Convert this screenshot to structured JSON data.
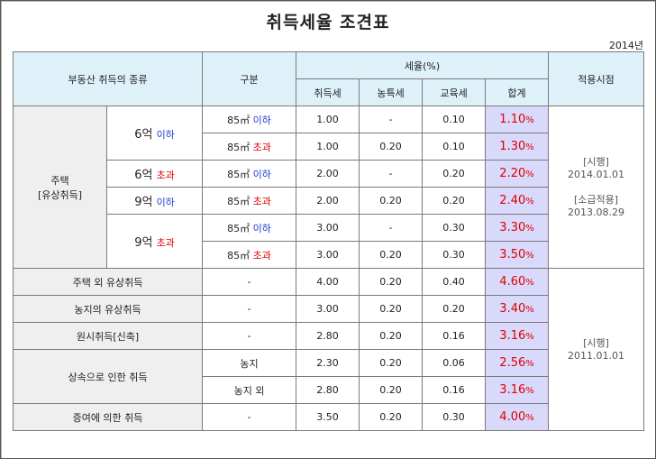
{
  "title": "취득세율 조견표",
  "year": "2014년",
  "header": {
    "category": "부동산 취득의 종류",
    "division": "구분",
    "rate": "세율(%)",
    "acq": "취득세",
    "agri": "농특세",
    "edu": "교육세",
    "total": "합계",
    "effective": "적용시점"
  },
  "labels": {
    "housing": "주택",
    "housing_sub": "[유상취득]",
    "eok6": "6억",
    "eok9": "9억",
    "below": "이하",
    "above": "초과",
    "m85": "85㎡",
    "dash": "-",
    "pct": "%",
    "farmland": "농지",
    "non_farmland": "농지 외"
  },
  "rows": [
    {
      "acq": "1.00",
      "agri": "-",
      "edu": "0.10",
      "total": "1.10"
    },
    {
      "acq": "1.00",
      "agri": "0.20",
      "edu": "0.10",
      "total": "1.30"
    },
    {
      "acq": "2.00",
      "agri": "-",
      "edu": "0.20",
      "total": "2.20"
    },
    {
      "acq": "2.00",
      "agri": "0.20",
      "edu": "0.20",
      "total": "2.40"
    },
    {
      "acq": "3.00",
      "agri": "-",
      "edu": "0.30",
      "total": "3.30"
    },
    {
      "acq": "3.00",
      "agri": "0.20",
      "edu": "0.30",
      "total": "3.50"
    },
    {
      "label": "주택 외 유상취득",
      "acq": "4.00",
      "agri": "0.20",
      "edu": "0.40",
      "total": "4.60"
    },
    {
      "label": "농지의 유상취득",
      "acq": "3.00",
      "agri": "0.20",
      "edu": "0.20",
      "total": "3.40"
    },
    {
      "label": "원시취득[신축]",
      "acq": "2.80",
      "agri": "0.20",
      "edu": "0.16",
      "total": "3.16"
    },
    {
      "label": "상속으로 인한 취득",
      "acq": "2.30",
      "agri": "0.20",
      "edu": "0.06",
      "total": "2.56"
    },
    {
      "acq": "2.80",
      "agri": "0.20",
      "edu": "0.16",
      "total": "3.16"
    },
    {
      "label": "증여에 의한 취득",
      "acq": "3.50",
      "agri": "0.20",
      "edu": "0.30",
      "total": "4.00"
    }
  ],
  "effective": {
    "a_label1": "[시행]",
    "a_date1": "2014.01.01",
    "a_label2": "[소급적용]",
    "a_date2": "2013.08.29",
    "b_label": "[시행]",
    "b_date": "2011.01.01"
  }
}
